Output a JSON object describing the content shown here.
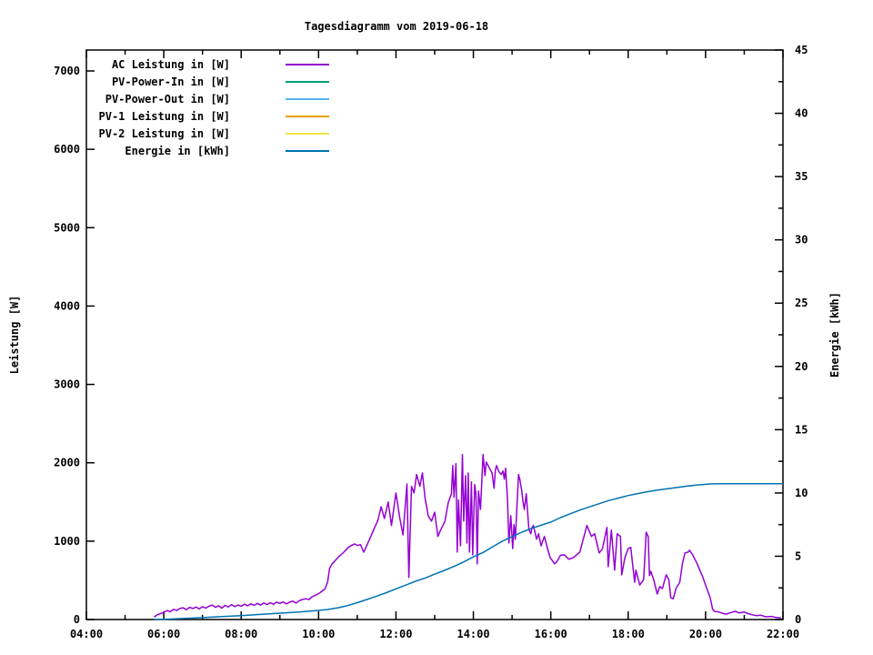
{
  "chart_data": {
    "type": "line",
    "title": "Tagesdiagramm vom 2019-06-18",
    "ylabel": "Leistung [W]",
    "y2label": "Energie [kWh]",
    "xlabel": "",
    "grid": "off",
    "legend_position": "top-left-inside",
    "x_ticks": {
      "range_hours": [
        4,
        22
      ],
      "major_labels": [
        "04:00",
        "06:00",
        "08:00",
        "10:00",
        "12:00",
        "14:00",
        "16:00",
        "18:00",
        "20:00",
        "22:00"
      ],
      "major_step_hours": 2,
      "minor_step_hours": 1
    },
    "y_ticks": {
      "range": [
        0,
        7267
      ],
      "major": [
        0,
        1000,
        2000,
        3000,
        4000,
        5000,
        6000,
        7000
      ]
    },
    "y2_ticks": {
      "range": [
        0,
        45
      ],
      "major": [
        0,
        5,
        10,
        15,
        20,
        25,
        30,
        35,
        40,
        45
      ],
      "minor_step": 2.5
    },
    "series": [
      {
        "name": "AC Leistung in [W]",
        "color": "#9400d3",
        "axis": "y1",
        "points": [
          [
            "05:45",
            30
          ],
          [
            "05:50",
            60
          ],
          [
            "05:55",
            75
          ],
          [
            "06:00",
            90
          ],
          [
            "06:05",
            115
          ],
          [
            "06:10",
            100
          ],
          [
            "06:15",
            130
          ],
          [
            "06:20",
            115
          ],
          [
            "06:25",
            140
          ],
          [
            "06:30",
            150
          ],
          [
            "06:35",
            125
          ],
          [
            "06:40",
            155
          ],
          [
            "06:45",
            140
          ],
          [
            "06:50",
            160
          ],
          [
            "06:55",
            135
          ],
          [
            "07:00",
            165
          ],
          [
            "07:05",
            145
          ],
          [
            "07:10",
            170
          ],
          [
            "07:15",
            185
          ],
          [
            "07:20",
            155
          ],
          [
            "07:25",
            175
          ],
          [
            "07:30",
            145
          ],
          [
            "07:35",
            180
          ],
          [
            "07:40",
            160
          ],
          [
            "07:45",
            190
          ],
          [
            "07:50",
            165
          ],
          [
            "07:55",
            185
          ],
          [
            "08:00",
            170
          ],
          [
            "08:05",
            195
          ],
          [
            "08:10",
            175
          ],
          [
            "08:15",
            200
          ],
          [
            "08:20",
            180
          ],
          [
            "08:25",
            205
          ],
          [
            "08:30",
            185
          ],
          [
            "08:35",
            210
          ],
          [
            "08:40",
            190
          ],
          [
            "08:45",
            215
          ],
          [
            "08:50",
            195
          ],
          [
            "08:55",
            220
          ],
          [
            "09:00",
            205
          ],
          [
            "09:05",
            225
          ],
          [
            "09:10",
            200
          ],
          [
            "09:15",
            220
          ],
          [
            "09:20",
            235
          ],
          [
            "09:25",
            210
          ],
          [
            "09:30",
            240
          ],
          [
            "09:35",
            255
          ],
          [
            "09:40",
            265
          ],
          [
            "09:45",
            255
          ],
          [
            "09:50",
            290
          ],
          [
            "09:55",
            310
          ],
          [
            "10:00",
            330
          ],
          [
            "10:05",
            360
          ],
          [
            "10:10",
            390
          ],
          [
            "10:14",
            480
          ],
          [
            "10:17",
            650
          ],
          [
            "10:21",
            710
          ],
          [
            "10:25",
            745
          ],
          [
            "10:31",
            800
          ],
          [
            "10:38",
            850
          ],
          [
            "10:46",
            920
          ],
          [
            "10:52",
            950
          ],
          [
            "10:56",
            965
          ],
          [
            "11:00",
            945
          ],
          [
            "11:05",
            955
          ],
          [
            "11:10",
            860
          ],
          [
            "11:15",
            950
          ],
          [
            "11:21",
            1060
          ],
          [
            "11:27",
            1175
          ],
          [
            "11:32",
            1265
          ],
          [
            "11:37",
            1440
          ],
          [
            "11:42",
            1290
          ],
          [
            "11:48",
            1500
          ],
          [
            "11:53",
            1200
          ],
          [
            "12:00",
            1615
          ],
          [
            "12:06",
            1290
          ],
          [
            "12:11",
            1080
          ],
          [
            "12:17",
            1730
          ],
          [
            "12:20",
            535
          ],
          [
            "12:24",
            1700
          ],
          [
            "12:28",
            1615
          ],
          [
            "12:32",
            1850
          ],
          [
            "12:37",
            1700
          ],
          [
            "12:41",
            1870
          ],
          [
            "12:45",
            1550
          ],
          [
            "12:50",
            1325
          ],
          [
            "12:55",
            1255
          ],
          [
            "13:00",
            1370
          ],
          [
            "13:05",
            1060
          ],
          [
            "13:09",
            1140
          ],
          [
            "13:16",
            1255
          ],
          [
            "13:21",
            1490
          ],
          [
            "13:26",
            1605
          ],
          [
            "13:28",
            1965
          ],
          [
            "13:30",
            1560
          ],
          [
            "13:33",
            1990
          ],
          [
            "13:35",
            860
          ],
          [
            "13:37",
            1525
          ],
          [
            "13:40",
            940
          ],
          [
            "13:43",
            2105
          ],
          [
            "13:45",
            1255
          ],
          [
            "13:48",
            1835
          ],
          [
            "13:50",
            975
          ],
          [
            "13:52",
            1870
          ],
          [
            "13:54",
            860
          ],
          [
            "13:57",
            1755
          ],
          [
            "13:59",
            825
          ],
          [
            "14:02",
            1720
          ],
          [
            "14:04",
            1605
          ],
          [
            "14:06",
            710
          ],
          [
            "14:08",
            1640
          ],
          [
            "14:11",
            1405
          ],
          [
            "14:15",
            2105
          ],
          [
            "14:18",
            1835
          ],
          [
            "14:20",
            2010
          ],
          [
            "14:25",
            1930
          ],
          [
            "14:29",
            1870
          ],
          [
            "14:32",
            1675
          ],
          [
            "14:34",
            1905
          ],
          [
            "14:36",
            1965
          ],
          [
            "14:39",
            1895
          ],
          [
            "14:43",
            1850
          ],
          [
            "14:46",
            1895
          ],
          [
            "14:48",
            1790
          ],
          [
            "14:50",
            1930
          ],
          [
            "14:53",
            1525
          ],
          [
            "14:55",
            975
          ],
          [
            "14:58",
            1325
          ],
          [
            "15:01",
            905
          ],
          [
            "15:03",
            1210
          ],
          [
            "15:05",
            1025
          ],
          [
            "15:10",
            1850
          ],
          [
            "15:12",
            1790
          ],
          [
            "15:15",
            1640
          ],
          [
            "15:17",
            1500
          ],
          [
            "15:19",
            1405
          ],
          [
            "15:22",
            1605
          ],
          [
            "15:26",
            1150
          ],
          [
            "15:29",
            1095
          ],
          [
            "15:31",
            1175
          ],
          [
            "15:33",
            1200
          ],
          [
            "15:38",
            1025
          ],
          [
            "15:41",
            1095
          ],
          [
            "15:45",
            940
          ],
          [
            "15:50",
            1060
          ],
          [
            "15:55",
            905
          ],
          [
            "15:59",
            790
          ],
          [
            "16:06",
            710
          ],
          [
            "16:10",
            745
          ],
          [
            "16:15",
            820
          ],
          [
            "16:21",
            825
          ],
          [
            "16:28",
            770
          ],
          [
            "16:35",
            790
          ],
          [
            "16:45",
            860
          ],
          [
            "16:56",
            1200
          ],
          [
            "17:03",
            1060
          ],
          [
            "17:08",
            1095
          ],
          [
            "17:15",
            850
          ],
          [
            "17:20",
            900
          ],
          [
            "17:27",
            1175
          ],
          [
            "17:29",
            675
          ],
          [
            "17:34",
            1140
          ],
          [
            "17:39",
            630
          ],
          [
            "17:43",
            1095
          ],
          [
            "17:48",
            1060
          ],
          [
            "17:50",
            570
          ],
          [
            "17:55",
            790
          ],
          [
            "18:00",
            905
          ],
          [
            "18:04",
            920
          ],
          [
            "18:10",
            475
          ],
          [
            "18:12",
            630
          ],
          [
            "18:18",
            440
          ],
          [
            "18:24",
            510
          ],
          [
            "18:28",
            1115
          ],
          [
            "18:31",
            1060
          ],
          [
            "18:33",
            560
          ],
          [
            "18:35",
            615
          ],
          [
            "18:40",
            500
          ],
          [
            "18:45",
            325
          ],
          [
            "18:49",
            420
          ],
          [
            "18:53",
            395
          ],
          [
            "18:59",
            570
          ],
          [
            "19:03",
            510
          ],
          [
            "19:06",
            280
          ],
          [
            "19:10",
            265
          ],
          [
            "19:14",
            395
          ],
          [
            "19:20",
            475
          ],
          [
            "19:24",
            710
          ],
          [
            "19:28",
            850
          ],
          [
            "19:33",
            860
          ],
          [
            "19:35",
            885
          ],
          [
            "19:40",
            825
          ],
          [
            "19:47",
            710
          ],
          [
            "19:51",
            630
          ],
          [
            "19:55",
            560
          ],
          [
            "20:00",
            440
          ],
          [
            "20:07",
            280
          ],
          [
            "20:11",
            130
          ],
          [
            "20:14",
            105
          ],
          [
            "20:21",
            95
          ],
          [
            "20:28",
            75
          ],
          [
            "20:32",
            70
          ],
          [
            "20:40",
            90
          ],
          [
            "20:46",
            105
          ],
          [
            "20:52",
            85
          ],
          [
            "21:00",
            95
          ],
          [
            "21:08",
            70
          ],
          [
            "21:18",
            50
          ],
          [
            "21:26",
            55
          ],
          [
            "21:33",
            35
          ],
          [
            "21:42",
            40
          ],
          [
            "21:50",
            25
          ],
          [
            "21:57",
            20
          ]
        ]
      },
      {
        "name": "PV-Power-In in [W]",
        "color": "#009e73",
        "axis": "y1",
        "points": []
      },
      {
        "name": "PV-Power-Out in [W]",
        "color": "#56b4e9",
        "axis": "y1",
        "points": []
      },
      {
        "name": "PV-1 Leistung in [W]",
        "color": "#e69f00",
        "axis": "y1",
        "points": []
      },
      {
        "name": "PV-2 Leistung in [W]",
        "color": "#f0e442",
        "axis": "y1",
        "points": []
      },
      {
        "name": "Energie in [kWh]",
        "color": "#0072b2",
        "axis": "y2",
        "points": [
          [
            "05:45",
            0
          ],
          [
            "06:00",
            0.02
          ],
          [
            "06:30",
            0.08
          ],
          [
            "07:00",
            0.15
          ],
          [
            "07:30",
            0.23
          ],
          [
            "08:00",
            0.31
          ],
          [
            "08:30",
            0.4
          ],
          [
            "09:00",
            0.5
          ],
          [
            "09:30",
            0.6
          ],
          [
            "10:00",
            0.72
          ],
          [
            "10:15",
            0.8
          ],
          [
            "10:30",
            0.93
          ],
          [
            "10:45",
            1.1
          ],
          [
            "11:00",
            1.33
          ],
          [
            "11:15",
            1.58
          ],
          [
            "11:30",
            1.85
          ],
          [
            "11:45",
            2.12
          ],
          [
            "12:00",
            2.42
          ],
          [
            "12:15",
            2.72
          ],
          [
            "12:30",
            3.02
          ],
          [
            "12:45",
            3.28
          ],
          [
            "13:00",
            3.58
          ],
          [
            "13:15",
            3.88
          ],
          [
            "13:30",
            4.2
          ],
          [
            "13:45",
            4.55
          ],
          [
            "14:00",
            4.95
          ],
          [
            "14:15",
            5.3
          ],
          [
            "14:30",
            5.75
          ],
          [
            "14:45",
            6.2
          ],
          [
            "15:00",
            6.55
          ],
          [
            "15:15",
            6.9
          ],
          [
            "15:30",
            7.2
          ],
          [
            "15:45",
            7.45
          ],
          [
            "16:00",
            7.7
          ],
          [
            "16:15",
            8.05
          ],
          [
            "16:30",
            8.35
          ],
          [
            "16:45",
            8.65
          ],
          [
            "17:00",
            8.9
          ],
          [
            "17:15",
            9.15
          ],
          [
            "17:30",
            9.4
          ],
          [
            "17:45",
            9.6
          ],
          [
            "18:00",
            9.8
          ],
          [
            "18:15",
            9.95
          ],
          [
            "18:30",
            10.1
          ],
          [
            "18:45",
            10.22
          ],
          [
            "19:00",
            10.32
          ],
          [
            "19:15",
            10.43
          ],
          [
            "19:30",
            10.53
          ],
          [
            "19:45",
            10.62
          ],
          [
            "20:00",
            10.68
          ],
          [
            "20:10",
            10.72
          ],
          [
            "20:30",
            10.73
          ],
          [
            "21:00",
            10.73
          ],
          [
            "21:30",
            10.73
          ],
          [
            "22:00",
            10.73
          ]
        ]
      }
    ]
  }
}
